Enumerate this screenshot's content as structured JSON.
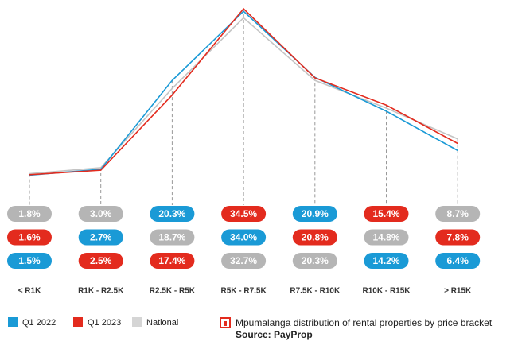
{
  "chart_data": {
    "type": "line",
    "categories": [
      "< R1K",
      "R1K - R2.5K",
      "R2.5K - R5K",
      "R5K - R7.5K",
      "R7.5K - R10K",
      "R10K - R15K",
      "> R15K"
    ],
    "series": [
      {
        "name": "Q1 2022",
        "color": "#1a9ad6",
        "values": [
          1.5,
          2.7,
          20.3,
          34.0,
          20.9,
          14.2,
          6.4
        ],
        "value_labels": [
          "1.5%",
          "2.7%",
          "20.3%",
          "34.0%",
          "20.9%",
          "14.2%",
          "6.4%"
        ]
      },
      {
        "name": "Q1 2023",
        "color": "#e32b1e",
        "values": [
          1.6,
          2.5,
          17.4,
          34.5,
          20.8,
          15.4,
          7.8
        ],
        "value_labels": [
          "1.6%",
          "2.5%",
          "17.4%",
          "34.5%",
          "20.8%",
          "15.4%",
          "7.8%"
        ]
      },
      {
        "name": "National",
        "color": "#c4c4c4",
        "values": [
          1.8,
          3.0,
          18.7,
          32.7,
          20.3,
          14.8,
          8.7
        ],
        "value_labels": [
          "1.8%",
          "3.0%",
          "18.7%",
          "32.7%",
          "20.3%",
          "14.8%",
          "8.7%"
        ]
      }
    ],
    "caption": "Mpumalanga distribution of rental properties by price bracket",
    "source": "Source: PayProp"
  }
}
